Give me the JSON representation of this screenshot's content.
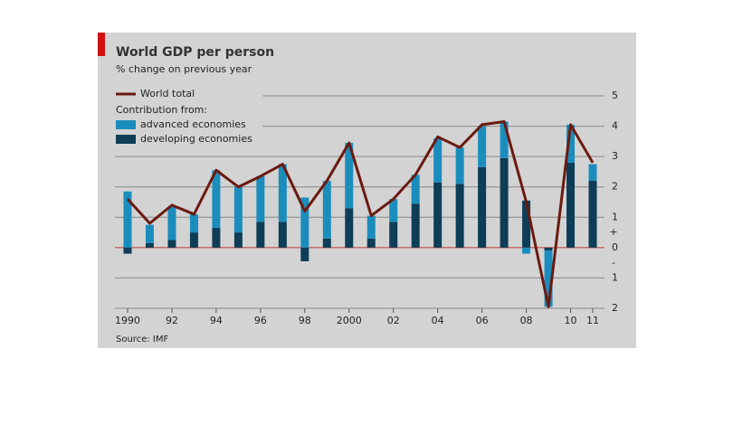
{
  "chart_data": {
    "type": "bar-line",
    "title": "World GDP per person",
    "subtitle": "% change on previous year",
    "legend_heading": "Contribution from:",
    "source": "Source: IMF",
    "axis_signs": [
      "+",
      "-"
    ],
    "categories": [
      "1990",
      null,
      "92",
      null,
      "94",
      null,
      "96",
      null,
      "98",
      null,
      "2000",
      null,
      "02",
      null,
      "04",
      null,
      "06",
      null,
      "08",
      null,
      "10",
      "11"
    ],
    "series": [
      {
        "name": "developing economies",
        "kind": "bar",
        "color": "#0d3d57",
        "values": [
          -0.2,
          0.15,
          0.25,
          0.5,
          0.65,
          0.5,
          0.85,
          0.85,
          -0.45,
          0.3,
          1.3,
          0.3,
          0.85,
          1.45,
          2.15,
          2.1,
          2.65,
          2.95,
          1.55,
          -0.1,
          2.8,
          2.2
        ]
      },
      {
        "name": "advanced economies",
        "kind": "bar",
        "color": "#1b8dbd",
        "values": [
          1.85,
          0.6,
          1.1,
          0.6,
          1.9,
          1.5,
          1.5,
          1.9,
          1.65,
          1.9,
          2.15,
          0.75,
          0.75,
          0.95,
          1.45,
          1.2,
          1.35,
          1.2,
          -0.2,
          -1.85,
          1.25,
          0.55
        ]
      },
      {
        "name": "World total",
        "kind": "line",
        "color": "#6b1a10",
        "values": [
          1.6,
          0.8,
          1.4,
          1.1,
          2.55,
          2.0,
          2.35,
          2.75,
          1.2,
          2.2,
          3.45,
          1.05,
          1.6,
          2.4,
          3.65,
          3.3,
          4.05,
          4.15,
          1.5,
          -1.95,
          4.05,
          2.8
        ]
      }
    ],
    "ylim": [
      -2,
      5
    ],
    "yticks": [
      {
        "value": -2,
        "label": "2"
      },
      {
        "value": -1,
        "label": "1"
      },
      0,
      1,
      2,
      3,
      4,
      5
    ],
    "grid": true
  }
}
